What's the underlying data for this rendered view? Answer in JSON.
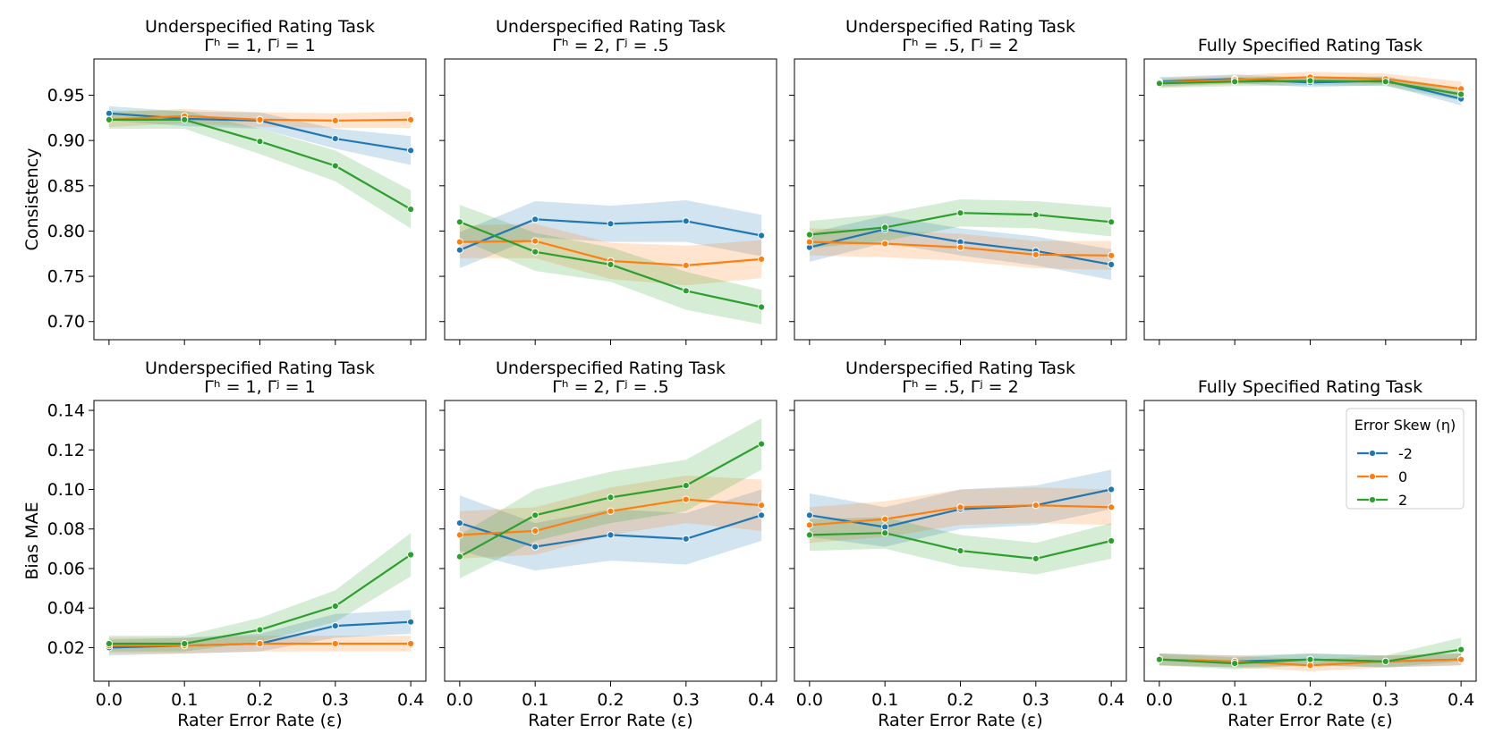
{
  "colors": {
    "s-2": "#1f77b4",
    "s0": "#ff7f0e",
    "s2": "#2ca02c"
  },
  "legend": {
    "title": "Error Skew (η)",
    "labels": [
      "-2",
      "0",
      "2"
    ]
  },
  "chart_data": [
    {
      "type": "line",
      "title_line1": "Underspecified Rating Task",
      "title_line2": "Γʰ = 1, Γʲ = 1",
      "xlabel": "",
      "ylabel": "Consistency",
      "x": [
        0.0,
        0.1,
        0.2,
        0.3,
        0.4
      ],
      "ylim": [
        0.68,
        0.99
      ],
      "yticks": [
        "0.70",
        "0.75",
        "0.80",
        "0.85",
        "0.90",
        "0.95"
      ],
      "series": [
        {
          "name": "-2",
          "values": [
            0.93,
            0.924,
            0.922,
            0.902,
            0.889
          ],
          "ci": [
            [
              0.922,
              0.938
            ],
            [
              0.916,
              0.932
            ],
            [
              0.913,
              0.931
            ],
            [
              0.891,
              0.913
            ],
            [
              0.873,
              0.905
            ]
          ]
        },
        {
          "name": "0",
          "values": [
            0.923,
            0.927,
            0.923,
            0.922,
            0.923
          ],
          "ci": [
            [
              0.915,
              0.931
            ],
            [
              0.919,
              0.935
            ],
            [
              0.915,
              0.931
            ],
            [
              0.914,
              0.93
            ],
            [
              0.914,
              0.932
            ]
          ]
        },
        {
          "name": "2",
          "values": [
            0.923,
            0.923,
            0.899,
            0.872,
            0.824
          ],
          "ci": [
            [
              0.913,
              0.933
            ],
            [
              0.913,
              0.933
            ],
            [
              0.885,
              0.913
            ],
            [
              0.855,
              0.889
            ],
            [
              0.803,
              0.845
            ]
          ]
        }
      ]
    },
    {
      "type": "line",
      "title_line1": "Underspecified Rating Task",
      "title_line2": "Γʰ = 2, Γʲ = .5",
      "xlabel": "",
      "ylabel": "",
      "x": [
        0.0,
        0.1,
        0.2,
        0.3,
        0.4
      ],
      "ylim": [
        0.68,
        0.99
      ],
      "yticks": [
        "0.70",
        "0.75",
        "0.80",
        "0.85",
        "0.90",
        "0.95"
      ],
      "series": [
        {
          "name": "-2",
          "values": [
            0.779,
            0.813,
            0.808,
            0.811,
            0.795
          ],
          "ci": [
            [
              0.759,
              0.799
            ],
            [
              0.793,
              0.833
            ],
            [
              0.788,
              0.828
            ],
            [
              0.788,
              0.834
            ],
            [
              0.772,
              0.818
            ]
          ]
        },
        {
          "name": "0",
          "values": [
            0.788,
            0.789,
            0.767,
            0.762,
            0.769
          ],
          "ci": [
            [
              0.77,
              0.806
            ],
            [
              0.77,
              0.808
            ],
            [
              0.747,
              0.787
            ],
            [
              0.74,
              0.784
            ],
            [
              0.748,
              0.79
            ]
          ]
        },
        {
          "name": "2",
          "values": [
            0.81,
            0.777,
            0.763,
            0.734,
            0.716
          ],
          "ci": [
            [
              0.791,
              0.829
            ],
            [
              0.756,
              0.798
            ],
            [
              0.744,
              0.782
            ],
            [
              0.713,
              0.755
            ],
            [
              0.697,
              0.735
            ]
          ]
        }
      ]
    },
    {
      "type": "line",
      "title_line1": "Underspecified Rating Task",
      "title_line2": "Γʰ = .5, Γʲ = 2",
      "xlabel": "",
      "ylabel": "",
      "x": [
        0.0,
        0.1,
        0.2,
        0.3,
        0.4
      ],
      "ylim": [
        0.68,
        0.99
      ],
      "yticks": [
        "0.70",
        "0.75",
        "0.80",
        "0.85",
        "0.90",
        "0.95"
      ],
      "series": [
        {
          "name": "-2",
          "values": [
            0.782,
            0.802,
            0.788,
            0.778,
            0.763
          ],
          "ci": [
            [
              0.766,
              0.798
            ],
            [
              0.787,
              0.817
            ],
            [
              0.773,
              0.803
            ],
            [
              0.762,
              0.794
            ],
            [
              0.746,
              0.78
            ]
          ]
        },
        {
          "name": "0",
          "values": [
            0.788,
            0.786,
            0.782,
            0.774,
            0.773
          ],
          "ci": [
            [
              0.773,
              0.803
            ],
            [
              0.771,
              0.801
            ],
            [
              0.767,
              0.797
            ],
            [
              0.759,
              0.789
            ],
            [
              0.757,
              0.789
            ]
          ]
        },
        {
          "name": "2",
          "values": [
            0.796,
            0.804,
            0.82,
            0.818,
            0.81
          ],
          "ci": [
            [
              0.781,
              0.811
            ],
            [
              0.789,
              0.819
            ],
            [
              0.805,
              0.835
            ],
            [
              0.803,
              0.833
            ],
            [
              0.794,
              0.826
            ]
          ]
        }
      ]
    },
    {
      "type": "line",
      "title_line1": "",
      "title_line2": "Fully Specified Rating Task",
      "xlabel": "",
      "ylabel": "",
      "x": [
        0.0,
        0.1,
        0.2,
        0.3,
        0.4
      ],
      "ylim": [
        0.68,
        0.99
      ],
      "yticks": [
        "0.70",
        "0.75",
        "0.80",
        "0.85",
        "0.90",
        "0.95"
      ],
      "series": [
        {
          "name": "-2",
          "values": [
            0.965,
            0.968,
            0.964,
            0.966,
            0.946
          ],
          "ci": [
            [
              0.96,
              0.97
            ],
            [
              0.963,
              0.973
            ],
            [
              0.959,
              0.969
            ],
            [
              0.961,
              0.971
            ],
            [
              0.939,
              0.953
            ]
          ]
        },
        {
          "name": "0",
          "values": [
            0.964,
            0.967,
            0.97,
            0.968,
            0.957
          ],
          "ci": [
            [
              0.959,
              0.969
            ],
            [
              0.962,
              0.972
            ],
            [
              0.964,
              0.976
            ],
            [
              0.962,
              0.974
            ],
            [
              0.949,
              0.965
            ]
          ]
        },
        {
          "name": "2",
          "values": [
            0.963,
            0.965,
            0.966,
            0.965,
            0.951
          ],
          "ci": [
            [
              0.958,
              0.968
            ],
            [
              0.96,
              0.97
            ],
            [
              0.961,
              0.971
            ],
            [
              0.96,
              0.97
            ],
            [
              0.944,
              0.958
            ]
          ]
        }
      ]
    },
    {
      "type": "line",
      "title_line1": "Underspecified Rating Task",
      "title_line2": "Γʰ = 1, Γʲ = 1",
      "xlabel": "Rater Error Rate (ε)",
      "ylabel": "Bias MAE",
      "x": [
        0.0,
        0.1,
        0.2,
        0.3,
        0.4
      ],
      "ylim": [
        0.003,
        0.145
      ],
      "xticks": [
        "0.0",
        "0.1",
        "0.2",
        "0.3",
        "0.4"
      ],
      "yticks": [
        "0.02",
        "0.04",
        "0.06",
        "0.08",
        "0.10",
        "0.12",
        "0.14"
      ],
      "series": [
        {
          "name": "-2",
          "values": [
            0.02,
            0.021,
            0.022,
            0.031,
            0.033
          ],
          "ci": [
            [
              0.016,
              0.024
            ],
            [
              0.017,
              0.025
            ],
            [
              0.018,
              0.027
            ],
            [
              0.025,
              0.037
            ],
            [
              0.027,
              0.039
            ]
          ]
        },
        {
          "name": "0",
          "values": [
            0.021,
            0.021,
            0.022,
            0.022,
            0.022
          ],
          "ci": [
            [
              0.017,
              0.025
            ],
            [
              0.017,
              0.025
            ],
            [
              0.018,
              0.026
            ],
            [
              0.018,
              0.026
            ],
            [
              0.018,
              0.026
            ]
          ]
        },
        {
          "name": "2",
          "values": [
            0.022,
            0.022,
            0.029,
            0.041,
            0.067
          ],
          "ci": [
            [
              0.018,
              0.026
            ],
            [
              0.018,
              0.026
            ],
            [
              0.023,
              0.035
            ],
            [
              0.033,
              0.049
            ],
            [
              0.056,
              0.078
            ]
          ]
        }
      ]
    },
    {
      "type": "line",
      "title_line1": "Underspecified Rating Task",
      "title_line2": "Γʰ = 2, Γʲ = .5",
      "xlabel": "Rater Error Rate (ε)",
      "ylabel": "",
      "x": [
        0.0,
        0.1,
        0.2,
        0.3,
        0.4
      ],
      "ylim": [
        0.003,
        0.145
      ],
      "xticks": [
        "0.0",
        "0.1",
        "0.2",
        "0.3",
        "0.4"
      ],
      "yticks": [
        "0.02",
        "0.04",
        "0.06",
        "0.08",
        "0.10",
        "0.12",
        "0.14"
      ],
      "series": [
        {
          "name": "-2",
          "values": [
            0.083,
            0.071,
            0.077,
            0.075,
            0.087
          ],
          "ci": [
            [
              0.069,
              0.097
            ],
            [
              0.059,
              0.083
            ],
            [
              0.064,
              0.09
            ],
            [
              0.062,
              0.088
            ],
            [
              0.074,
              0.1
            ]
          ]
        },
        {
          "name": "0",
          "values": [
            0.077,
            0.079,
            0.089,
            0.095,
            0.092
          ],
          "ci": [
            [
              0.065,
              0.089
            ],
            [
              0.067,
              0.091
            ],
            [
              0.077,
              0.101
            ],
            [
              0.083,
              0.107
            ],
            [
              0.079,
              0.105
            ]
          ]
        },
        {
          "name": "2",
          "values": [
            0.066,
            0.087,
            0.096,
            0.102,
            0.123
          ],
          "ci": [
            [
              0.055,
              0.077
            ],
            [
              0.074,
              0.1
            ],
            [
              0.083,
              0.109
            ],
            [
              0.089,
              0.115
            ],
            [
              0.11,
              0.136
            ]
          ]
        }
      ]
    },
    {
      "type": "line",
      "title_line1": "Underspecified Rating Task",
      "title_line2": "Γʰ = .5, Γʲ = 2",
      "xlabel": "Rater Error Rate (ε)",
      "ylabel": "",
      "x": [
        0.0,
        0.1,
        0.2,
        0.3,
        0.4
      ],
      "ylim": [
        0.003,
        0.145
      ],
      "xticks": [
        "0.0",
        "0.1",
        "0.2",
        "0.3",
        "0.4"
      ],
      "yticks": [
        "0.02",
        "0.04",
        "0.06",
        "0.08",
        "0.10",
        "0.12",
        "0.14"
      ],
      "series": [
        {
          "name": "-2",
          "values": [
            0.087,
            0.081,
            0.09,
            0.092,
            0.1
          ],
          "ci": [
            [
              0.076,
              0.098
            ],
            [
              0.071,
              0.091
            ],
            [
              0.08,
              0.1
            ],
            [
              0.082,
              0.102
            ],
            [
              0.09,
              0.11
            ]
          ]
        },
        {
          "name": "0",
          "values": [
            0.082,
            0.085,
            0.091,
            0.092,
            0.091
          ],
          "ci": [
            [
              0.073,
              0.091
            ],
            [
              0.076,
              0.094
            ],
            [
              0.082,
              0.1
            ],
            [
              0.083,
              0.101
            ],
            [
              0.082,
              0.1
            ]
          ]
        },
        {
          "name": "2",
          "values": [
            0.077,
            0.078,
            0.069,
            0.065,
            0.074
          ],
          "ci": [
            [
              0.069,
              0.085
            ],
            [
              0.07,
              0.086
            ],
            [
              0.061,
              0.077
            ],
            [
              0.057,
              0.073
            ],
            [
              0.065,
              0.083
            ]
          ]
        }
      ]
    },
    {
      "type": "line",
      "title_line1": "",
      "title_line2": "Fully Specified Rating Task",
      "xlabel": "Rater Error Rate (ε)",
      "ylabel": "",
      "x": [
        0.0,
        0.1,
        0.2,
        0.3,
        0.4
      ],
      "ylim": [
        0.003,
        0.145
      ],
      "xticks": [
        "0.0",
        "0.1",
        "0.2",
        "0.3",
        "0.4"
      ],
      "yticks": [
        "0.02",
        "0.04",
        "0.06",
        "0.08",
        "0.10",
        "0.12",
        "0.14"
      ],
      "series": [
        {
          "name": "-2",
          "values": [
            0.014,
            0.013,
            0.014,
            0.013,
            0.014
          ],
          "ci": [
            [
              0.011,
              0.017
            ],
            [
              0.01,
              0.016
            ],
            [
              0.011,
              0.017
            ],
            [
              0.01,
              0.016
            ],
            [
              0.011,
              0.017
            ]
          ]
        },
        {
          "name": "0",
          "values": [
            0.014,
            0.013,
            0.011,
            0.013,
            0.014
          ],
          "ci": [
            [
              0.011,
              0.017
            ],
            [
              0.01,
              0.016
            ],
            [
              0.008,
              0.014
            ],
            [
              0.01,
              0.016
            ],
            [
              0.011,
              0.017
            ]
          ]
        },
        {
          "name": "2",
          "values": [
            0.014,
            0.012,
            0.014,
            0.013,
            0.019
          ],
          "ci": [
            [
              0.011,
              0.017
            ],
            [
              0.009,
              0.015
            ],
            [
              0.011,
              0.017
            ],
            [
              0.01,
              0.016
            ],
            [
              0.013,
              0.025
            ]
          ]
        }
      ]
    }
  ]
}
